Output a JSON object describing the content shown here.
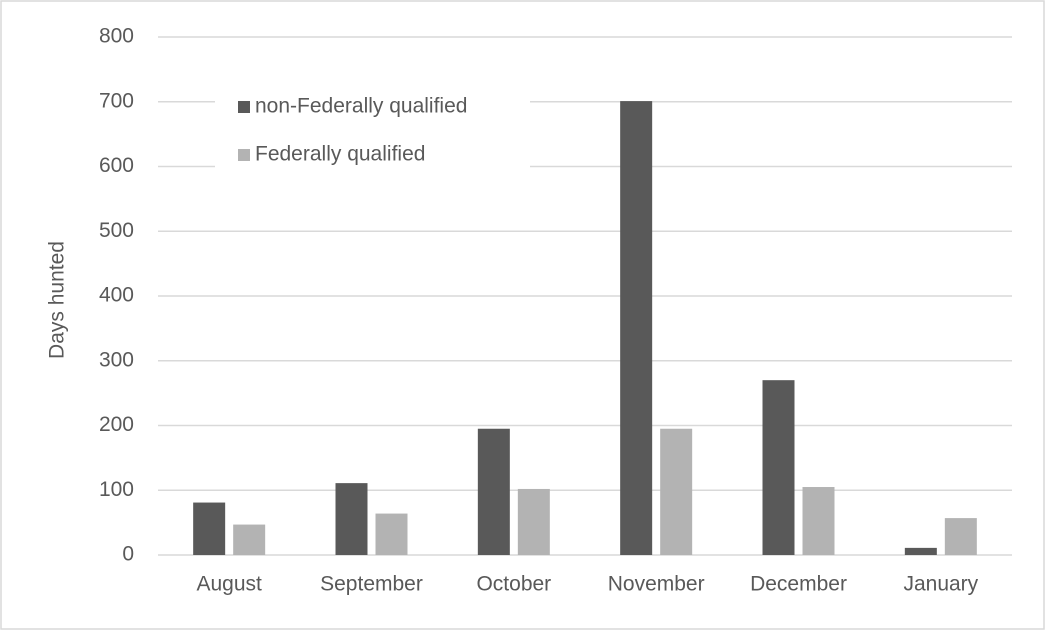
{
  "chart_data": {
    "type": "bar",
    "ylabel": "Days hunted",
    "categories": [
      "August",
      "September",
      "October",
      "November",
      "December",
      "January"
    ],
    "series": [
      {
        "name": "non-Federally qualified",
        "color": "#595959",
        "values": [
          81,
          111,
          195,
          701,
          270,
          11
        ]
      },
      {
        "name": "Federally qualified",
        "color": "#b3b3b3",
        "values": [
          47,
          64,
          102,
          195,
          105,
          57
        ]
      }
    ],
    "ylim": [
      0,
      800
    ],
    "yticks": [
      0,
      100,
      200,
      300,
      400,
      500,
      600,
      700,
      800
    ],
    "grid": true,
    "legend": "upper left"
  }
}
